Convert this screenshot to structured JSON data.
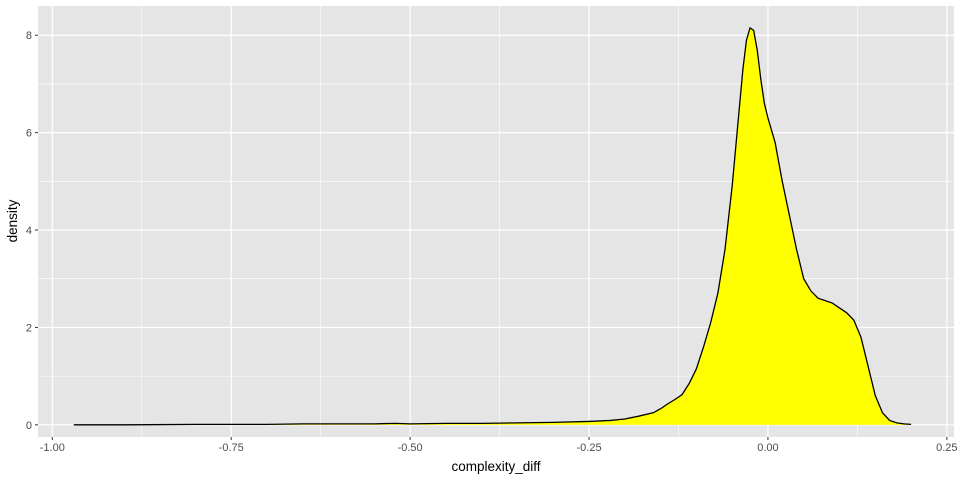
{
  "chart_data": {
    "type": "area",
    "xlabel": "complexity_diff",
    "ylabel": "density",
    "xlim": [
      -1.02,
      0.26
    ],
    "ylim": [
      -0.25,
      8.6
    ],
    "x_ticks": [
      -1.0,
      -0.75,
      -0.5,
      -0.25,
      0.0,
      0.25
    ],
    "x_tick_labels": [
      "-1.00",
      "-0.75",
      "-0.50",
      "-0.25",
      "0.00",
      "0.25"
    ],
    "y_ticks": [
      0,
      2,
      4,
      6,
      8
    ],
    "y_tick_labels": [
      "0",
      "2",
      "4",
      "6",
      "8"
    ],
    "grid": true,
    "legend": "none",
    "colors": {
      "panel": "#e5e5e5",
      "grid": "#ffffff",
      "fill": "#ffff00",
      "outline": "#000000"
    },
    "series": [
      {
        "x": [
          -0.97,
          -0.9,
          -0.8,
          -0.7,
          -0.65,
          -0.6,
          -0.55,
          -0.52,
          -0.5,
          -0.45,
          -0.4,
          -0.35,
          -0.3,
          -0.25,
          -0.22,
          -0.2,
          -0.18,
          -0.16,
          -0.15,
          -0.14,
          -0.13,
          -0.12,
          -0.11,
          -0.1,
          -0.09,
          -0.08,
          -0.07,
          -0.06,
          -0.05,
          -0.04,
          -0.035,
          -0.03,
          -0.025,
          -0.02,
          -0.015,
          -0.01,
          -0.005,
          0.0,
          0.01,
          0.02,
          0.03,
          0.04,
          0.05,
          0.06,
          0.07,
          0.08,
          0.09,
          0.1,
          0.11,
          0.12,
          0.13,
          0.14,
          0.15,
          0.16,
          0.17,
          0.18,
          0.19,
          0.2
        ],
        "y": [
          0.0,
          0.0,
          0.01,
          0.01,
          0.02,
          0.02,
          0.02,
          0.03,
          0.02,
          0.03,
          0.03,
          0.04,
          0.05,
          0.07,
          0.09,
          0.12,
          0.18,
          0.25,
          0.33,
          0.43,
          0.52,
          0.62,
          0.85,
          1.15,
          1.6,
          2.1,
          2.7,
          3.6,
          4.9,
          6.5,
          7.3,
          7.9,
          8.15,
          8.1,
          7.7,
          7.1,
          6.6,
          6.3,
          5.8,
          5.0,
          4.3,
          3.6,
          3.0,
          2.75,
          2.6,
          2.55,
          2.5,
          2.4,
          2.3,
          2.15,
          1.8,
          1.2,
          0.6,
          0.25,
          0.09,
          0.04,
          0.02,
          0.01
        ]
      }
    ]
  }
}
